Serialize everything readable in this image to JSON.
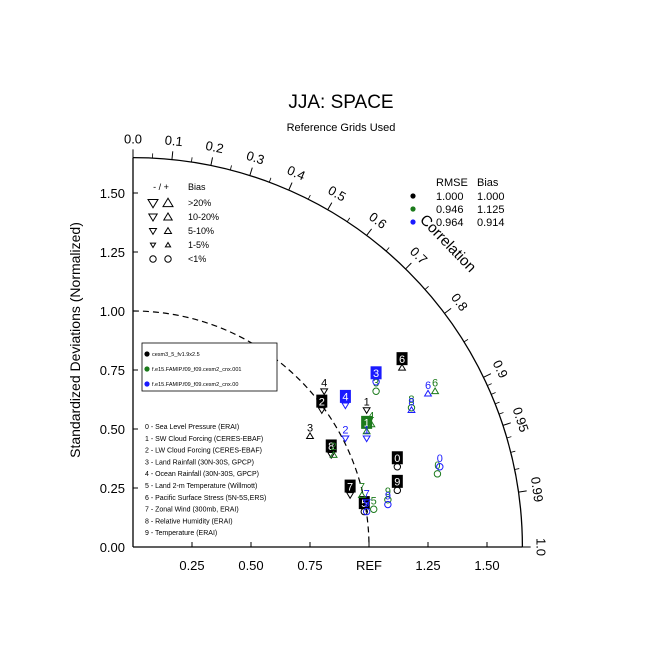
{
  "chart_data": {
    "type": "scatter",
    "subtype": "taylor-diagram",
    "title": "JJA: SPACE",
    "subtitle": "Reference Grids Used",
    "ylabel": "Standardized Deviations (Normalized)",
    "corr_label": "Correlation",
    "ref_label": "REF",
    "xlim": [
      0,
      1.65
    ],
    "ylim": [
      0,
      1.65
    ],
    "x_ticks": [
      {
        "v": 0.25,
        "label": "0.25"
      },
      {
        "v": 0.5,
        "label": "0.50"
      },
      {
        "v": 0.75,
        "label": "0.75"
      },
      {
        "v": 1.0,
        "label": "REF"
      },
      {
        "v": 1.25,
        "label": "1.25"
      },
      {
        "v": 1.5,
        "label": "1.50"
      }
    ],
    "y_ticks": [
      {
        "v": 0.0,
        "label": "0.00"
      },
      {
        "v": 0.25,
        "label": "0.25"
      },
      {
        "v": 0.5,
        "label": "0.50"
      },
      {
        "v": 0.75,
        "label": "0.75"
      },
      {
        "v": 1.0,
        "label": "1.00"
      },
      {
        "v": 1.25,
        "label": "1.25"
      },
      {
        "v": 1.5,
        "label": "1.50"
      }
    ],
    "corr_ticks": [
      {
        "v": 0.0,
        "label": "0.0"
      },
      {
        "v": 0.1,
        "label": "0.1"
      },
      {
        "v": 0.2,
        "label": "0.2"
      },
      {
        "v": 0.3,
        "label": "0.3"
      },
      {
        "v": 0.4,
        "label": "0.4"
      },
      {
        "v": 0.5,
        "label": "0.5"
      },
      {
        "v": 0.6,
        "label": "0.6"
      },
      {
        "v": 0.7,
        "label": "0.7"
      },
      {
        "v": 0.8,
        "label": "0.8"
      },
      {
        "v": 0.9,
        "label": "0.9"
      },
      {
        "v": 0.95,
        "label": "0.95"
      },
      {
        "v": 0.99,
        "label": "0.99"
      },
      {
        "v": 1.0,
        "label": "1.0"
      }
    ],
    "corr_minor": [
      0.05,
      0.15,
      0.25,
      0.35,
      0.45,
      0.55,
      0.65,
      0.75,
      0.85,
      0.91,
      0.92,
      0.93,
      0.94,
      0.96,
      0.97,
      0.98
    ],
    "rmse_bias_header": {
      "rmse": "RMSE",
      "bias": "Bias"
    },
    "rmse_bias_table": [
      {
        "color": "#000000",
        "rmse": "1.000",
        "bias": "1.000"
      },
      {
        "color": "#1b7a1b",
        "rmse": "0.946",
        "bias": "1.125"
      },
      {
        "color": "#1a1aff",
        "rmse": "0.964",
        "bias": "0.914"
      }
    ],
    "bias_legend": {
      "header_sign": "- / +",
      "header_bias": "Bias",
      "rows": [
        {
          "label": ">20%",
          "size": 5
        },
        {
          "label": "10-20%",
          "size": 4.2
        },
        {
          "label": "5-10%",
          "size": 3.5
        },
        {
          "label": "1-5%",
          "size": 2.6
        },
        {
          "label": "<1%",
          "size": 0
        }
      ]
    },
    "cases": [
      {
        "name": "cesm3_5_fv1.9x2.5",
        "color": "#000000"
      },
      {
        "name": "f.e15.FAMIP.f09_f09.cesm2_cnx.001",
        "color": "#1b7a1b"
      },
      {
        "name": "f.e15.FAMIP.f09_f09.cesm2_cnx.00",
        "color": "#1a1aff"
      }
    ],
    "variables": [
      "0 - Sea Level Pressure (ERAI)",
      "1 - SW Cloud Forcing (CERES-EBAF)",
      "2 - LW Cloud Forcing (CERES-EBAF)",
      "3 - Land Rainfall (30N-30S, GPCP)",
      "4 - Ocean Rainfall (30N-30S, GPCP)",
      "5 - Land 2-m Temperature (Willmott)",
      "6 - Pacific Surface Stress (5N-5S,ERS)",
      "7 - Zonal Wind (300mb, ERAI)",
      "8 - Relative Humidity (ERAI)",
      "9 - Temperature (ERAI)"
    ],
    "points": [
      {
        "case": 0,
        "label": "0",
        "x": 1.12,
        "y": 0.34,
        "marker": "circle",
        "boxed": true
      },
      {
        "case": 0,
        "label": "1",
        "x": 0.99,
        "y": 0.58,
        "marker": "tri-down",
        "boxed": false
      },
      {
        "case": 0,
        "label": "2",
        "x": 0.8,
        "y": 0.58,
        "marker": "tri-down",
        "boxed": true
      },
      {
        "case": 0,
        "label": "3",
        "x": 0.75,
        "y": 0.47,
        "marker": "tri-up",
        "boxed": false
      },
      {
        "case": 0,
        "label": "4",
        "x": 0.81,
        "y": 0.66,
        "marker": "tri-down",
        "boxed": false
      },
      {
        "case": 0,
        "label": "5",
        "x": 0.98,
        "y": 0.15,
        "marker": "circle",
        "boxed": true
      },
      {
        "case": 0,
        "label": "6",
        "x": 1.14,
        "y": 0.76,
        "marker": "tri-up",
        "boxed": true
      },
      {
        "case": 0,
        "label": "7",
        "x": 0.92,
        "y": 0.22,
        "marker": "tri-down",
        "boxed": true
      },
      {
        "case": 0,
        "label": "8",
        "x": 0.84,
        "y": 0.39,
        "marker": "tri-down",
        "boxed": true
      },
      {
        "case": 0,
        "label": "9",
        "x": 1.12,
        "y": 0.24,
        "marker": "circle",
        "boxed": true
      },
      {
        "case": 1,
        "label": "0",
        "x": 1.29,
        "y": 0.31,
        "marker": "circle",
        "boxed": false
      },
      {
        "case": 1,
        "label": "1",
        "x": 0.99,
        "y": 0.49,
        "marker": "tri-up",
        "boxed": true
      },
      {
        "case": 1,
        "label": "2",
        "x": 0.85,
        "y": 0.39,
        "marker": "tri-up",
        "boxed": false
      },
      {
        "case": 1,
        "label": "3",
        "x": 1.03,
        "y": 0.66,
        "marker": "circle",
        "boxed": false
      },
      {
        "case": 1,
        "label": "4",
        "x": 1.01,
        "y": 0.52,
        "marker": "tri-up",
        "boxed": false
      },
      {
        "case": 1,
        "label": "5",
        "x": 1.02,
        "y": 0.16,
        "marker": "circle",
        "boxed": false
      },
      {
        "case": 1,
        "label": "6",
        "x": 1.28,
        "y": 0.66,
        "marker": "tri-up",
        "boxed": false
      },
      {
        "case": 1,
        "label": "7",
        "x": 0.97,
        "y": 0.22,
        "marker": "tri-up",
        "boxed": false
      },
      {
        "case": 1,
        "label": "8",
        "x": 1.18,
        "y": 0.59,
        "marker": "circle",
        "boxed": false
      },
      {
        "case": 1,
        "label": "9",
        "x": 1.08,
        "y": 0.2,
        "marker": "circle",
        "boxed": false
      },
      {
        "case": 2,
        "label": "0",
        "x": 1.3,
        "y": 0.34,
        "marker": "circle",
        "boxed": false
      },
      {
        "case": 2,
        "label": "1",
        "x": 0.99,
        "y": 0.46,
        "marker": "tri-down",
        "boxed": false
      },
      {
        "case": 2,
        "label": "2",
        "x": 0.9,
        "y": 0.46,
        "marker": "tri-down",
        "boxed": false
      },
      {
        "case": 2,
        "label": "3",
        "x": 1.03,
        "y": 0.7,
        "marker": "circle",
        "boxed": true
      },
      {
        "case": 2,
        "label": "4",
        "x": 0.9,
        "y": 0.6,
        "marker": "tri-down",
        "boxed": true
      },
      {
        "case": 2,
        "label": "5",
        "x": 0.99,
        "y": 0.15,
        "marker": "circle",
        "boxed": false
      },
      {
        "case": 2,
        "label": "6",
        "x": 1.25,
        "y": 0.65,
        "marker": "tri-up",
        "boxed": false
      },
      {
        "case": 2,
        "label": "7",
        "x": 0.99,
        "y": 0.19,
        "marker": "tri-down",
        "boxed": false
      },
      {
        "case": 2,
        "label": "8",
        "x": 1.18,
        "y": 0.58,
        "marker": "tri-up",
        "boxed": false
      },
      {
        "case": 2,
        "label": "9",
        "x": 1.08,
        "y": 0.18,
        "marker": "circle",
        "boxed": false
      }
    ]
  }
}
